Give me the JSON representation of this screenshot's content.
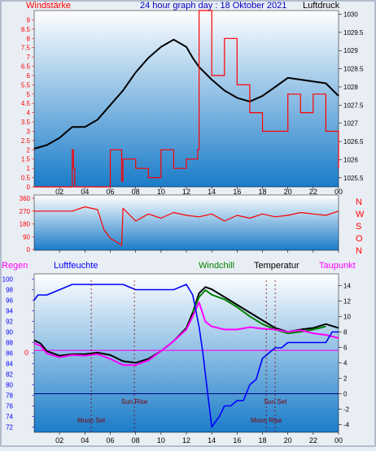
{
  "chart_data": [
    {
      "type": "line",
      "title": "24 hour graph day : 18 Oktober 2021",
      "left_label": "Windstärke",
      "right_label": "Luftdruck",
      "left_ticks": [
        "0",
        "0.5",
        "1",
        "1.5",
        "2",
        "2.5",
        "3",
        "3.5",
        "4",
        "4.5",
        "5",
        "5.5",
        "6",
        "6.5",
        "7",
        "7.5",
        "8",
        "8.5",
        "9"
      ],
      "right_ticks": [
        "1025.5",
        "1026",
        "1026.5",
        "1027",
        "1027.5",
        "1028",
        "1028.5",
        "1029",
        "1029.5",
        "1030"
      ],
      "x_ticks": [
        "02",
        "04",
        "06",
        "08",
        "10",
        "12",
        "14",
        "16",
        "18",
        "20",
        "22",
        "00"
      ],
      "x_range_hours": [
        0,
        24
      ],
      "left_range": [
        0,
        9.5
      ],
      "right_range": [
        1025.25,
        1030.1
      ],
      "series": [
        {
          "name": "Luftdruck",
          "color": "#000000",
          "axis": "right",
          "x": [
            0,
            1,
            2,
            3,
            4,
            5,
            6,
            7,
            8,
            9,
            10,
            11,
            12,
            12.5,
            13,
            14,
            15,
            16,
            17,
            18,
            19,
            20,
            21,
            22,
            23,
            24
          ],
          "y": [
            1026.3,
            1026.4,
            1026.6,
            1026.9,
            1026.9,
            1027.1,
            1027.5,
            1027.9,
            1028.4,
            1028.8,
            1029.1,
            1029.3,
            1029.1,
            1028.8,
            1028.55,
            1028.2,
            1027.9,
            1027.7,
            1027.6,
            1027.75,
            1028.0,
            1028.25,
            1028.2,
            1028.15,
            1028.1,
            1027.75
          ]
        },
        {
          "name": "Wind",
          "color": "#ff0000",
          "axis": "left",
          "x": [
            0,
            2.9,
            3.0,
            3.1,
            3.2,
            5.9,
            6.0,
            6.9,
            7.0,
            8.0,
            9.0,
            10.0,
            11.0,
            12.0,
            12.9,
            13.0,
            14.0,
            15.0,
            16.0,
            17.0,
            18.0,
            19.0,
            20.0,
            21.0,
            22.0,
            23.0,
            24.0
          ],
          "y": [
            0,
            0,
            2,
            1,
            0,
            0,
            2,
            0.3,
            1.5,
            1,
            0.5,
            2,
            1,
            1.5,
            2,
            9.5,
            6,
            8,
            5.5,
            4,
            3,
            3,
            5,
            4,
            5,
            3,
            1
          ]
        },
        {
          "name": "Windrichtung",
          "color": "#ff0000",
          "axis": "dir",
          "x": [
            0,
            3,
            4,
            5,
            5.5,
            6,
            6.9,
            7,
            8,
            9,
            10,
            11,
            12,
            13,
            14,
            15,
            16,
            17,
            18,
            19,
            20,
            21,
            22,
            23,
            24
          ],
          "y": [
            270,
            270,
            300,
            280,
            140,
            80,
            30,
            290,
            200,
            250,
            220,
            260,
            240,
            230,
            250,
            200,
            240,
            220,
            250,
            230,
            240,
            260,
            250,
            240,
            270
          ]
        }
      ],
      "dir_ticks": [
        "0",
        "90",
        "180",
        "270",
        "360"
      ],
      "dir_labels": [
        "N",
        "W",
        "S",
        "O",
        "N"
      ]
    },
    {
      "type": "line",
      "labels": {
        "regen": "Regen",
        "feuchte": "Luftfeuchte",
        "windchill": "Windchill",
        "temperatur": "Temperatur",
        "taupunkt": "Taupunkt"
      },
      "left_ticks": [
        "72",
        "74",
        "76",
        "78",
        "80",
        "82",
        "84",
        "86",
        "88",
        "90",
        "92",
        "94",
        "96",
        "98",
        "100"
      ],
      "right_ticks": [
        "-4",
        "-2",
        "0",
        "2",
        "4",
        "6",
        "8",
        "10",
        "12",
        "14"
      ],
      "rain_value": "0",
      "x_ticks": [
        "02",
        "04",
        "06",
        "08",
        "10",
        "12",
        "14",
        "16",
        "18",
        "20",
        "22",
        "00"
      ],
      "annotations": [
        "Sun Rise",
        "Moon Set",
        "Sun Set",
        "Moon Rise"
      ],
      "series": [
        {
          "name": "Temperatur",
          "color": "#000000",
          "axis": "right",
          "x": [
            0,
            0.5,
            1,
            2,
            3,
            4,
            5,
            6,
            7,
            8,
            9,
            10,
            11,
            12,
            12.5,
            13,
            13.5,
            14,
            14.5,
            15,
            16,
            17,
            18,
            19,
            20,
            21,
            22,
            23,
            24
          ],
          "y": [
            6.9,
            6.5,
            5.5,
            4.9,
            5.1,
            5.1,
            5.3,
            5.0,
            4.2,
            4.0,
            4.5,
            5.5,
            6.8,
            8.5,
            10.5,
            13.0,
            13.8,
            13.5,
            13.0,
            12.5,
            11.5,
            10.5,
            9.5,
            8.5,
            8.0,
            8.3,
            8.5,
            9.0,
            8.5
          ]
        },
        {
          "name": "Windchill",
          "color": "#008000",
          "axis": "right",
          "x": [
            12.5,
            13,
            13.5,
            14,
            15,
            16,
            17,
            18,
            19,
            20,
            21,
            22,
            23
          ],
          "y": [
            10.5,
            12.5,
            13.4,
            12.8,
            12.2,
            11.2,
            10.0,
            9.0,
            8.3,
            7.8,
            8.0,
            8.3,
            8.7
          ]
        },
        {
          "name": "Taupunkt",
          "color": "#ff00ff",
          "axis": "right",
          "x": [
            0,
            0.5,
            1,
            2,
            3,
            4,
            5,
            6,
            7,
            8,
            9,
            10,
            11,
            12,
            12.5,
            13,
            13.5,
            14,
            15,
            16,
            17,
            18,
            19,
            20,
            21,
            22,
            23,
            24
          ],
          "y": [
            6.5,
            6.2,
            5.2,
            4.7,
            5.0,
            4.9,
            5.1,
            4.5,
            3.7,
            3.7,
            4.3,
            5.5,
            6.8,
            8.3,
            10.0,
            11.8,
            9.3,
            8.7,
            8.3,
            8.3,
            8.6,
            8.4,
            8.3,
            8.0,
            8.2,
            7.8,
            7.6,
            7.2
          ]
        },
        {
          "name": "Luftfeuchte",
          "color": "#0000ff",
          "axis": "left",
          "x": [
            0,
            0.3,
            1,
            2,
            3,
            4,
            5,
            6,
            7,
            8,
            9,
            10,
            11,
            12,
            12.5,
            13,
            13.3,
            13.6,
            14,
            14.3,
            14.6,
            15,
            15.5,
            16,
            16.5,
            17,
            17.5,
            18,
            18.5,
            19,
            19.5,
            20,
            21,
            22,
            23,
            23.5,
            24
          ],
          "y": [
            96,
            97,
            97,
            98,
            99,
            99,
            99,
            99,
            99,
            98,
            98,
            98,
            98,
            99,
            97,
            91,
            86,
            80,
            72,
            73,
            74,
            76,
            76,
            77,
            77,
            80,
            81,
            85,
            86,
            87,
            87,
            88,
            88,
            88,
            88,
            90,
            90
          ]
        }
      ]
    }
  ],
  "rain": {
    "zero_label": "0"
  }
}
